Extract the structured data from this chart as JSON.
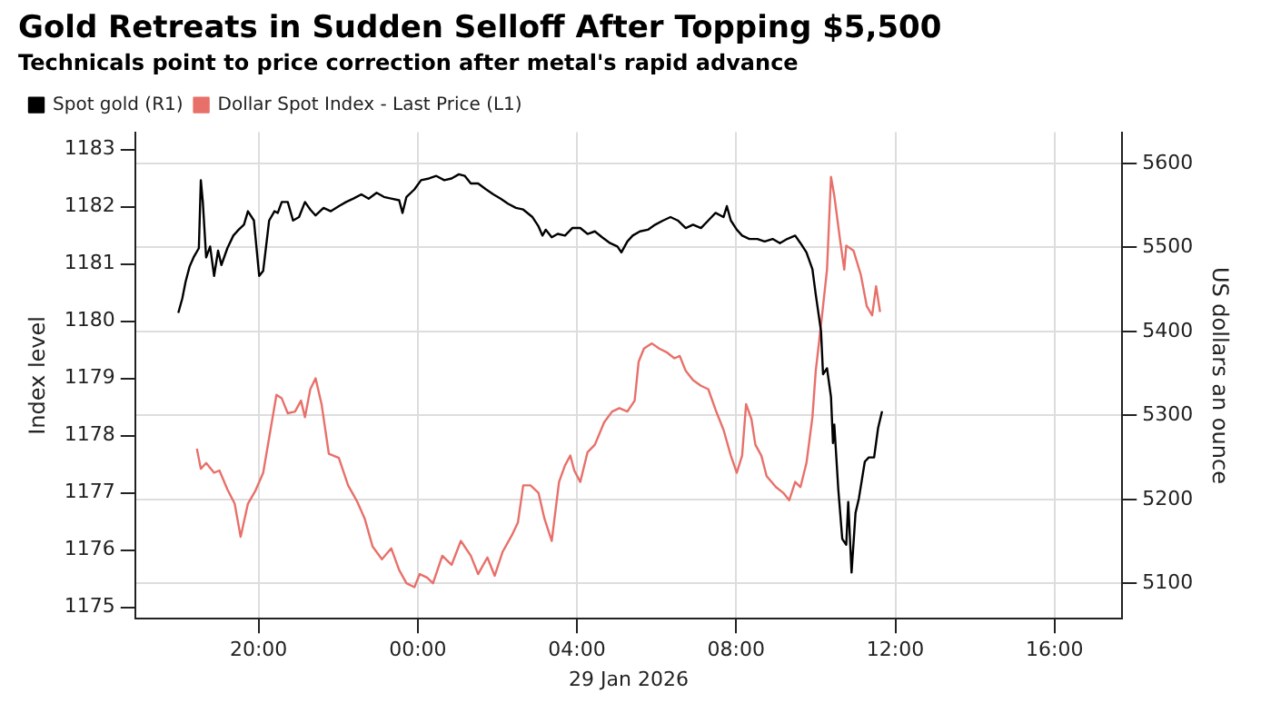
{
  "chart_data": {
    "type": "line",
    "title": "Gold Retreats in Sudden Selloff After Topping $5,500",
    "subtitle": "Technicals point to price correction after metal's rapid advance",
    "xlabel": "29 Jan 2026",
    "ylabel": "Index level",
    "y2label": "US dollars an ounce",
    "xlim": [
      "2026-01-28T16:54",
      "2026-01-29T17:42"
    ],
    "xticks": [
      {
        "value": "2026-01-28T20:00",
        "label": "20:00"
      },
      {
        "value": "2026-01-29T00:00",
        "label": "00:00"
      },
      {
        "value": "2026-01-29T04:00",
        "label": "04:00"
      },
      {
        "value": "2026-01-29T08:00",
        "label": "08:00"
      },
      {
        "value": "2026-01-29T12:00",
        "label": "12:00"
      },
      {
        "value": "2026-01-29T16:00",
        "label": "16:00"
      }
    ],
    "ylim": [
      1174.8,
      1183.3
    ],
    "yticks": [
      1175,
      1176,
      1177,
      1178,
      1179,
      1180,
      1181,
      1182,
      1183
    ],
    "y2lim": [
      5058,
      5637
    ],
    "y2ticks": [
      5100,
      5200,
      5300,
      5400,
      5500,
      5600
    ],
    "grid": true,
    "legend": "top left",
    "marker": "none",
    "line_style": "solid",
    "series": [
      {
        "name": "Spot gold (R1)",
        "color": "#000000",
        "axis": "y2",
        "x": [
          "2026-01-28T17:59",
          "2026-01-28T18:05",
          "2026-01-28T18:10",
          "2026-01-28T18:16",
          "2026-01-28T18:22",
          "2026-01-28T18:30",
          "2026-01-28T18:33",
          "2026-01-28T18:36",
          "2026-01-28T18:41",
          "2026-01-28T18:47",
          "2026-01-28T18:53",
          "2026-01-28T18:59",
          "2026-01-28T19:04",
          "2026-01-28T19:13",
          "2026-01-28T19:22",
          "2026-01-28T19:30",
          "2026-01-28T19:38",
          "2026-01-28T19:44",
          "2026-01-28T19:53",
          "2026-01-28T20:01",
          "2026-01-28T20:07",
          "2026-01-28T20:16",
          "2026-01-28T20:24",
          "2026-01-28T20:29",
          "2026-01-28T20:35",
          "2026-01-28T20:44",
          "2026-01-28T20:52",
          "2026-01-28T21:01",
          "2026-01-28T21:10",
          "2026-01-28T21:18",
          "2026-01-28T21:26",
          "2026-01-28T21:38",
          "2026-01-28T21:49",
          "2026-01-28T22:01",
          "2026-01-28T22:12",
          "2026-01-28T22:23",
          "2026-01-28T22:35",
          "2026-01-28T22:46",
          "2026-01-28T22:58",
          "2026-01-28T23:09",
          "2026-01-28T23:20",
          "2026-01-28T23:32",
          "2026-01-28T23:37",
          "2026-01-28T23:43",
          "2026-01-28T23:55",
          "2026-01-29T00:05",
          "2026-01-29T00:17",
          "2026-01-29T00:28",
          "2026-01-29T00:40",
          "2026-01-29T00:51",
          "2026-01-29T01:02",
          "2026-01-29T01:11",
          "2026-01-29T01:20",
          "2026-01-29T01:31",
          "2026-01-29T01:43",
          "2026-01-29T01:54",
          "2026-01-29T02:05",
          "2026-01-29T02:16",
          "2026-01-29T02:28",
          "2026-01-29T02:39",
          "2026-01-29T02:53",
          "2026-01-29T03:02",
          "2026-01-29T03:08",
          "2026-01-29T03:13",
          "2026-01-29T03:22",
          "2026-01-29T03:31",
          "2026-01-29T03:42",
          "2026-01-29T03:53",
          "2026-01-29T04:05",
          "2026-01-29T04:16",
          "2026-01-29T04:27",
          "2026-01-29T04:38",
          "2026-01-29T04:50",
          "2026-01-29T05:01",
          "2026-01-29T05:07",
          "2026-01-29T05:16",
          "2026-01-29T05:24",
          "2026-01-29T05:35",
          "2026-01-29T05:47",
          "2026-01-29T05:58",
          "2026-01-29T06:10",
          "2026-01-29T06:21",
          "2026-01-29T06:32",
          "2026-01-29T06:44",
          "2026-01-29T06:55",
          "2026-01-29T07:07",
          "2026-01-29T07:18",
          "2026-01-29T07:29",
          "2026-01-29T07:41",
          "2026-01-29T07:46",
          "2026-01-29T07:52",
          "2026-01-29T08:01",
          "2026-01-29T08:09",
          "2026-01-29T08:20",
          "2026-01-29T08:32",
          "2026-01-29T08:43",
          "2026-01-29T08:55",
          "2026-01-29T09:06",
          "2026-01-29T09:17",
          "2026-01-29T09:29",
          "2026-01-29T09:37",
          "2026-01-29T09:46",
          "2026-01-29T09:55",
          "2026-01-29T10:00",
          "2026-01-29T10:08",
          "2026-01-29T10:11",
          "2026-01-29T10:17",
          "2026-01-29T10:23",
          "2026-01-29T10:26",
          "2026-01-29T10:28",
          "2026-01-29T10:34",
          "2026-01-29T10:40",
          "2026-01-29T10:46",
          "2026-01-29T10:49",
          "2026-01-29T10:54",
          "2026-01-29T11:00",
          "2026-01-29T11:05",
          "2026-01-29T11:14",
          "2026-01-29T11:20",
          "2026-01-29T11:28",
          "2026-01-29T11:34",
          "2026-01-29T11:40"
        ],
        "values": [
          5422,
          5439,
          5459,
          5477,
          5488,
          5499,
          5580,
          5554,
          5488,
          5501,
          5466,
          5496,
          5479,
          5499,
          5514,
          5521,
          5527,
          5543,
          5532,
          5466,
          5472,
          5532,
          5543,
          5541,
          5554,
          5554,
          5532,
          5536,
          5554,
          5545,
          5538,
          5547,
          5543,
          5549,
          5554,
          5558,
          5563,
          5558,
          5565,
          5560,
          5558,
          5556,
          5541,
          5560,
          5569,
          5580,
          5582,
          5585,
          5580,
          5582,
          5587,
          5585,
          5576,
          5576,
          5569,
          5563,
          5558,
          5552,
          5547,
          5545,
          5536,
          5525,
          5514,
          5521,
          5512,
          5516,
          5514,
          5523,
          5523,
          5516,
          5519,
          5512,
          5505,
          5501,
          5494,
          5507,
          5514,
          5519,
          5521,
          5527,
          5532,
          5536,
          5532,
          5523,
          5527,
          5523,
          5532,
          5541,
          5536,
          5549,
          5532,
          5521,
          5514,
          5510,
          5510,
          5507,
          5510,
          5505,
          5510,
          5514,
          5505,
          5494,
          5474,
          5444,
          5400,
          5349,
          5356,
          5322,
          5267,
          5289,
          5212,
          5153,
          5146,
          5197,
          5113,
          5184,
          5201,
          5245,
          5250,
          5250,
          5285,
          5305
        ]
      },
      {
        "name": "Dollar Spot Index - Last Price (L1)",
        "color": "#e8706a",
        "axis": "y",
        "x": [
          "2026-01-28T18:27",
          "2026-01-28T18:33",
          "2026-01-28T18:41",
          "2026-01-28T18:53",
          "2026-01-28T19:01",
          "2026-01-28T19:13",
          "2026-01-28T19:24",
          "2026-01-28T19:33",
          "2026-01-28T19:44",
          "2026-01-28T19:55",
          "2026-01-28T20:07",
          "2026-01-28T20:18",
          "2026-01-28T20:27",
          "2026-01-28T20:35",
          "2026-01-28T20:44",
          "2026-01-28T20:55",
          "2026-01-28T21:04",
          "2026-01-28T21:10",
          "2026-01-28T21:18",
          "2026-01-28T21:26",
          "2026-01-28T21:35",
          "2026-01-28T21:46",
          "2026-01-28T22:01",
          "2026-01-28T22:15",
          "2026-01-28T22:29",
          "2026-01-28T22:40",
          "2026-01-28T22:52",
          "2026-01-28T23:06",
          "2026-01-28T23:20",
          "2026-01-28T23:32",
          "2026-01-28T23:43",
          "2026-01-28T23:55",
          "2026-01-29T00:03",
          "2026-01-29T00:14",
          "2026-01-29T00:23",
          "2026-01-29T00:37",
          "2026-01-29T00:51",
          "2026-01-29T01:05",
          "2026-01-29T01:20",
          "2026-01-29T01:31",
          "2026-01-29T01:45",
          "2026-01-29T01:56",
          "2026-01-29T02:08",
          "2026-01-29T02:22",
          "2026-01-29T02:31",
          "2026-01-29T02:39",
          "2026-01-29T02:50",
          "2026-01-29T03:02",
          "2026-01-29T03:11",
          "2026-01-29T03:22",
          "2026-01-29T03:33",
          "2026-01-29T03:42",
          "2026-01-29T03:50",
          "2026-01-29T03:56",
          "2026-01-29T04:05",
          "2026-01-29T04:16",
          "2026-01-29T04:27",
          "2026-01-29T04:41",
          "2026-01-29T04:53",
          "2026-01-29T05:04",
          "2026-01-29T05:16",
          "2026-01-29T05:27",
          "2026-01-29T05:33",
          "2026-01-29T05:41",
          "2026-01-29T05:53",
          "2026-01-29T06:04",
          "2026-01-29T06:16",
          "2026-01-29T06:27",
          "2026-01-29T06:35",
          "2026-01-29T06:44",
          "2026-01-29T06:55",
          "2026-01-29T07:07",
          "2026-01-29T07:18",
          "2026-01-29T07:29",
          "2026-01-29T07:41",
          "2026-01-29T07:52",
          "2026-01-29T08:01",
          "2026-01-29T08:09",
          "2026-01-29T08:15",
          "2026-01-29T08:23",
          "2026-01-29T08:29",
          "2026-01-29T08:38",
          "2026-01-29T08:46",
          "2026-01-29T09:00",
          "2026-01-29T09:11",
          "2026-01-29T09:20",
          "2026-01-29T09:29",
          "2026-01-29T09:37",
          "2026-01-29T09:46",
          "2026-01-29T09:55",
          "2026-01-29T10:00",
          "2026-01-29T10:08",
          "2026-01-29T10:17",
          "2026-01-29T10:23",
          "2026-01-29T10:28",
          "2026-01-29T10:37",
          "2026-01-29T10:43",
          "2026-01-29T10:46",
          "2026-01-29T10:57",
          "2026-01-29T11:08",
          "2026-01-29T11:17",
          "2026-01-29T11:25",
          "2026-01-29T11:31",
          "2026-01-29T11:37"
        ],
        "values": [
          1177.77,
          1177.42,
          1177.52,
          1177.35,
          1177.39,
          1177.06,
          1176.81,
          1176.23,
          1176.81,
          1177.03,
          1177.35,
          1178.1,
          1178.71,
          1178.65,
          1178.39,
          1178.42,
          1178.61,
          1178.32,
          1178.81,
          1179.0,
          1178.55,
          1177.68,
          1177.61,
          1177.13,
          1176.84,
          1176.55,
          1176.06,
          1175.84,
          1176.03,
          1175.65,
          1175.42,
          1175.35,
          1175.58,
          1175.52,
          1175.42,
          1175.9,
          1175.74,
          1176.16,
          1175.9,
          1175.58,
          1175.87,
          1175.55,
          1175.97,
          1176.26,
          1176.48,
          1177.13,
          1177.13,
          1177.0,
          1176.55,
          1176.16,
          1177.19,
          1177.48,
          1177.65,
          1177.39,
          1177.19,
          1177.71,
          1177.84,
          1178.23,
          1178.42,
          1178.48,
          1178.42,
          1178.61,
          1179.29,
          1179.52,
          1179.61,
          1179.52,
          1179.45,
          1179.35,
          1179.39,
          1179.13,
          1178.97,
          1178.87,
          1178.81,
          1178.45,
          1178.1,
          1177.65,
          1177.35,
          1177.65,
          1178.55,
          1178.29,
          1177.84,
          1177.65,
          1177.29,
          1177.1,
          1177.0,
          1176.87,
          1177.19,
          1177.1,
          1177.52,
          1178.32,
          1179.13,
          1179.94,
          1180.9,
          1182.52,
          1182.19,
          1181.39,
          1180.9,
          1181.32,
          1181.23,
          1180.81,
          1180.26,
          1180.1,
          1180.61,
          1180.16
        ]
      }
    ]
  }
}
